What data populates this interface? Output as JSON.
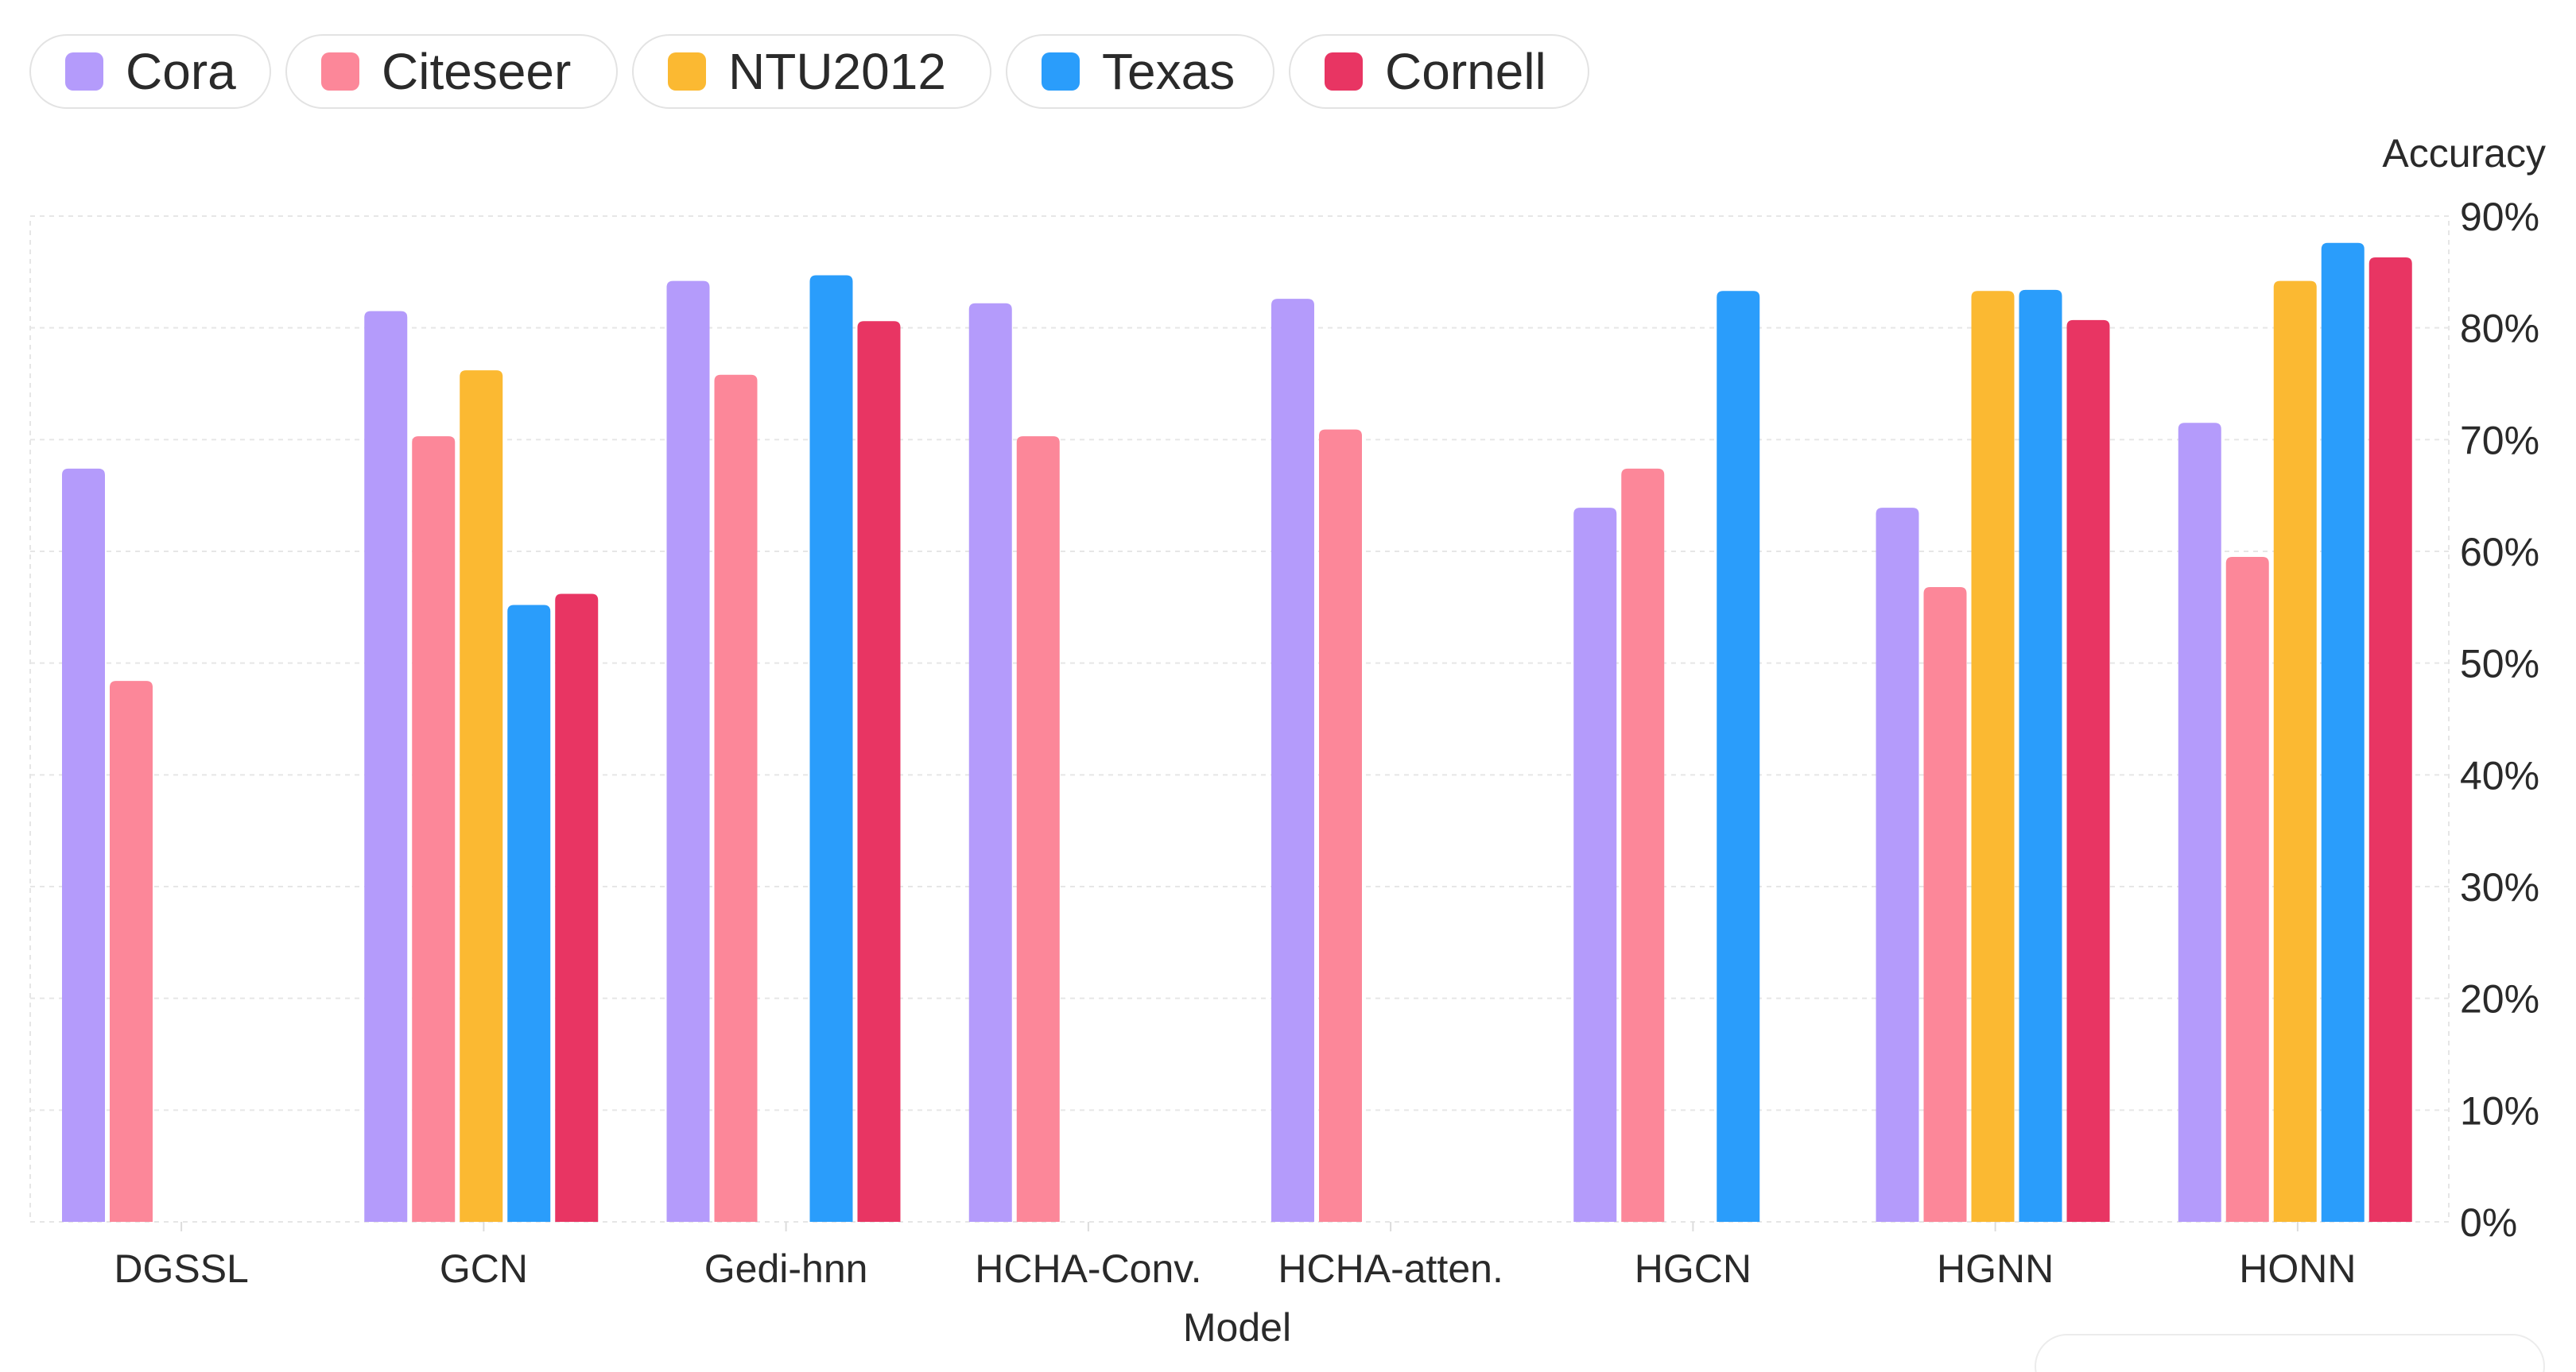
{
  "chart_data": {
    "type": "bar",
    "title": "",
    "xlabel": "Model",
    "ylabel": "Accuracy",
    "ylim": [
      0,
      90
    ],
    "y_ticks": [
      "0%",
      "10%",
      "20%",
      "30%",
      "40%",
      "50%",
      "60%",
      "70%",
      "80%",
      "90%"
    ],
    "y_axis_position": "right",
    "grid": true,
    "legend_position": "top-left",
    "categories": [
      "DGSSL",
      "GCN",
      "Gedi-hnn",
      "HCHA-Conv.",
      "HCHA-atten.",
      "HGCN",
      "HGNN",
      "HONN"
    ],
    "series": [
      {
        "name": "Cora",
        "color": "#b49bfb",
        "values": [
          67.4,
          81.5,
          84.2,
          82.2,
          82.6,
          63.9,
          63.9,
          71.5
        ]
      },
      {
        "name": "Citeseer",
        "color": "#fc8799",
        "values": [
          48.4,
          70.3,
          75.8,
          70.3,
          70.9,
          67.4,
          56.8,
          59.5
        ]
      },
      {
        "name": "NTU2012",
        "color": "#fbb932",
        "values": [
          null,
          76.2,
          null,
          null,
          null,
          null,
          83.3,
          84.2
        ]
      },
      {
        "name": "Texas",
        "color": "#2a9dfb",
        "values": [
          null,
          55.2,
          84.7,
          null,
          null,
          83.3,
          83.4,
          87.6
        ]
      },
      {
        "name": "Cornell",
        "color": "#e83563",
        "values": [
          null,
          56.2,
          80.6,
          null,
          null,
          null,
          80.7,
          86.3
        ]
      }
    ]
  }
}
